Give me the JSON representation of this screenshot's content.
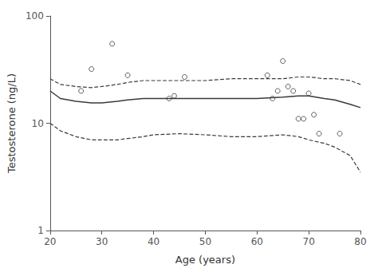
{
  "chart_data": {
    "type": "scatter",
    "xlabel": "Age (years)",
    "ylabel": "Testosterone (ng/L)",
    "xlim": [
      20,
      80
    ],
    "ylim": [
      1,
      100
    ],
    "xticks": [
      20,
      30,
      40,
      50,
      60,
      70,
      80
    ],
    "yticks": [
      1,
      10,
      100
    ],
    "log": "y",
    "grid": false,
    "series": [
      {
        "type": "scatter",
        "marker": "open_circle",
        "color": "#3a3a3a",
        "x": [
          26,
          28,
          32,
          35,
          43,
          44,
          46,
          62,
          63,
          64,
          65,
          66,
          67,
          68,
          69,
          70,
          71,
          72,
          76
        ],
        "values": [
          20,
          32,
          55,
          28,
          17,
          18,
          27,
          28,
          17,
          20,
          38,
          22,
          20,
          11,
          11,
          19,
          12,
          8,
          8
        ]
      },
      {
        "type": "line",
        "line_style": "solid",
        "color": "#3a3a3a",
        "x": [
          20,
          22,
          25,
          28,
          30,
          33,
          35,
          38,
          40,
          45,
          50,
          55,
          60,
          65,
          68,
          70,
          73,
          75,
          78,
          80
        ],
        "values": [
          20,
          17,
          16,
          15.5,
          15.5,
          16,
          16.5,
          17,
          17,
          17,
          17,
          17,
          17,
          17.5,
          18,
          18,
          17,
          16.5,
          15,
          14
        ]
      },
      {
        "type": "line",
        "line_style": "dashed",
        "color": "#3a3a3a",
        "x": [
          20,
          22,
          25,
          28,
          30,
          33,
          35,
          38,
          40,
          45,
          50,
          55,
          60,
          65,
          68,
          70,
          73,
          75,
          78,
          80
        ],
        "values": [
          26,
          23,
          22,
          21.5,
          22,
          23,
          24,
          25,
          25,
          25,
          25,
          26,
          26,
          26,
          27,
          27,
          26,
          26,
          25,
          23
        ]
      },
      {
        "type": "line",
        "line_style": "dashed",
        "color": "#3a3a3a",
        "x": [
          20,
          22,
          25,
          28,
          30,
          33,
          35,
          38,
          40,
          45,
          50,
          55,
          60,
          65,
          68,
          70,
          73,
          75,
          78,
          80
        ],
        "values": [
          10,
          8.5,
          7.5,
          7,
          7,
          7,
          7.2,
          7.5,
          7.8,
          8,
          7.8,
          7.5,
          7.5,
          7.8,
          7.5,
          7,
          6.5,
          6,
          5,
          3.5
        ]
      }
    ]
  }
}
